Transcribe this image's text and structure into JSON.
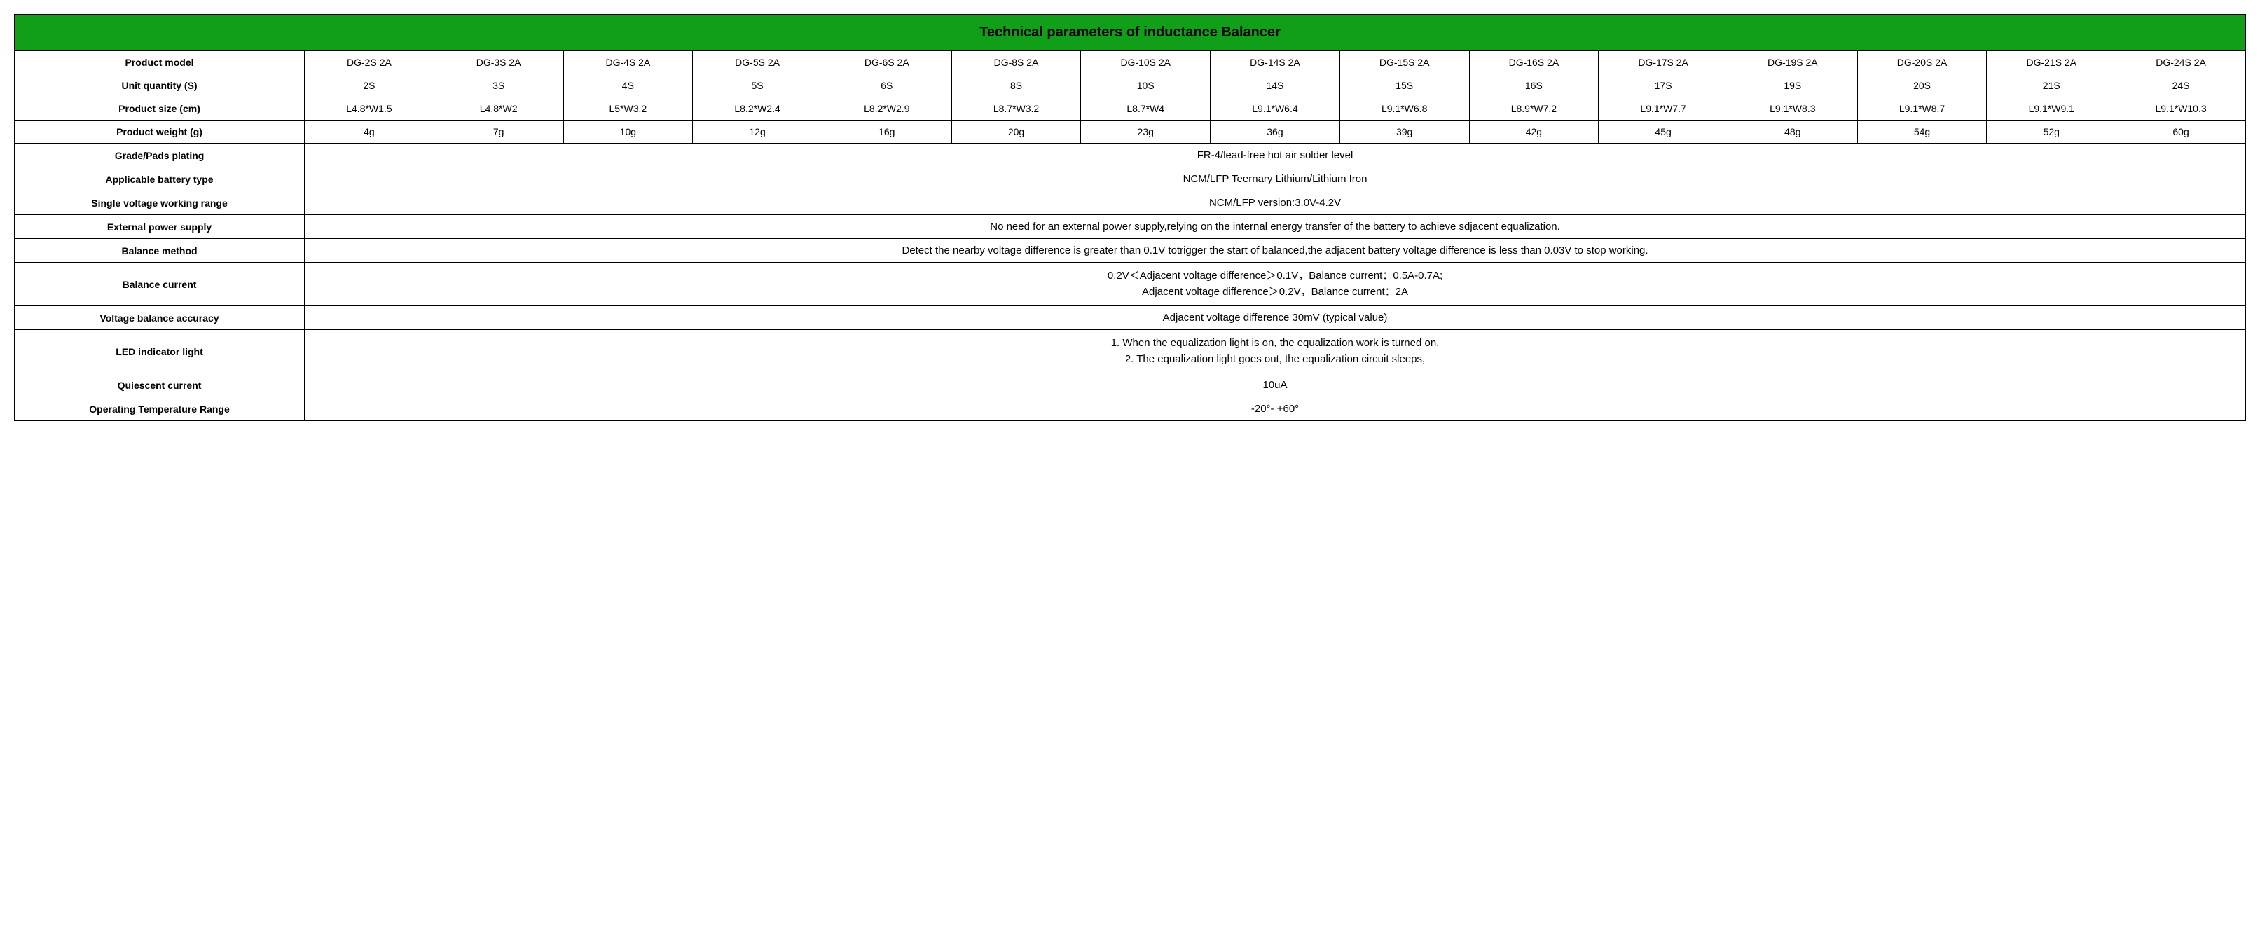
{
  "title": "Technical parameters of inductance Balancer",
  "colors": {
    "header_bg": "#119e19",
    "border": "#000000",
    "text": "#000000",
    "bg": "#ffffff"
  },
  "table": {
    "type": "table",
    "paramRows": [
      {
        "label": "Product model",
        "values": [
          "DG-2S 2A",
          "DG-3S 2A",
          "DG-4S 2A",
          "DG-5S 2A",
          "DG-6S 2A",
          "DG-8S 2A",
          "DG-10S 2A",
          "DG-14S 2A",
          "DG-15S 2A",
          "DG-16S 2A",
          "DG-17S 2A",
          "DG-19S 2A",
          "DG-20S 2A",
          "DG-21S 2A",
          "DG-24S 2A"
        ]
      },
      {
        "label": "Unit quantity (S)",
        "values": [
          "2S",
          "3S",
          "4S",
          "5S",
          "6S",
          "8S",
          "10S",
          "14S",
          "15S",
          "16S",
          "17S",
          "19S",
          "20S",
          "21S",
          "24S"
        ]
      },
      {
        "label": "Product size  (cm)",
        "values": [
          "L4.8*W1.5",
          "L4.8*W2",
          "L5*W3.2",
          "L8.2*W2.4",
          "L8.2*W2.9",
          "L8.7*W3.2",
          "L8.7*W4",
          "L9.1*W6.4",
          "L9.1*W6.8",
          "L8.9*W7.2",
          "L9.1*W7.7",
          "L9.1*W8.3",
          "L9.1*W8.7",
          "L9.1*W9.1",
          "L9.1*W10.3"
        ]
      },
      {
        "label": "Product weight  (g)",
        "values": [
          "4g",
          "7g",
          "10g",
          "12g",
          "16g",
          "20g",
          "23g",
          "36g",
          "39g",
          "42g",
          "45g",
          "48g",
          "54g",
          "52g",
          "60g"
        ]
      }
    ],
    "mergedRows": [
      {
        "label": "Grade/Pads plating",
        "value": "FR-4/lead-free hot air solder level"
      },
      {
        "label": "Applicable battery type",
        "value": "NCM/LFP Teernary Lithium/Lithium Iron"
      },
      {
        "label": "Single voltage working range",
        "value": "NCM/LFP version:3.0V-4.2V"
      },
      {
        "label": "External power supply",
        "value": "No need for an external power supply,relying on the internal energy transfer of the battery to achieve sdjacent equalization."
      },
      {
        "label": "Balance method",
        "value": "Detect the nearby voltage difference is greater than 0.1V totrigger the start of balanced,the adjacent battery voltage difference is less than 0.03V to stop working."
      },
      {
        "label": "Balance current",
        "lines": [
          "0.2V＜Adjacent voltage difference＞0.1V，Balance current：0.5A-0.7A;",
          "Adjacent voltage difference＞0.2V，Balance current：2A"
        ]
      },
      {
        "label": "Voltage balance accuracy",
        "value": "Adjacent voltage difference 30mV (typical value)"
      },
      {
        "label": "LED indicator light",
        "lines": [
          "1. When the equalization light is on, the equalization work is turned on.",
          "2. The equalization light goes out, the equalization circuit sleeps,"
        ]
      },
      {
        "label": "Quiescent current",
        "value": "10uA"
      },
      {
        "label": "Operating Temperature Range",
        "value": "-20°- +60°"
      }
    ]
  }
}
